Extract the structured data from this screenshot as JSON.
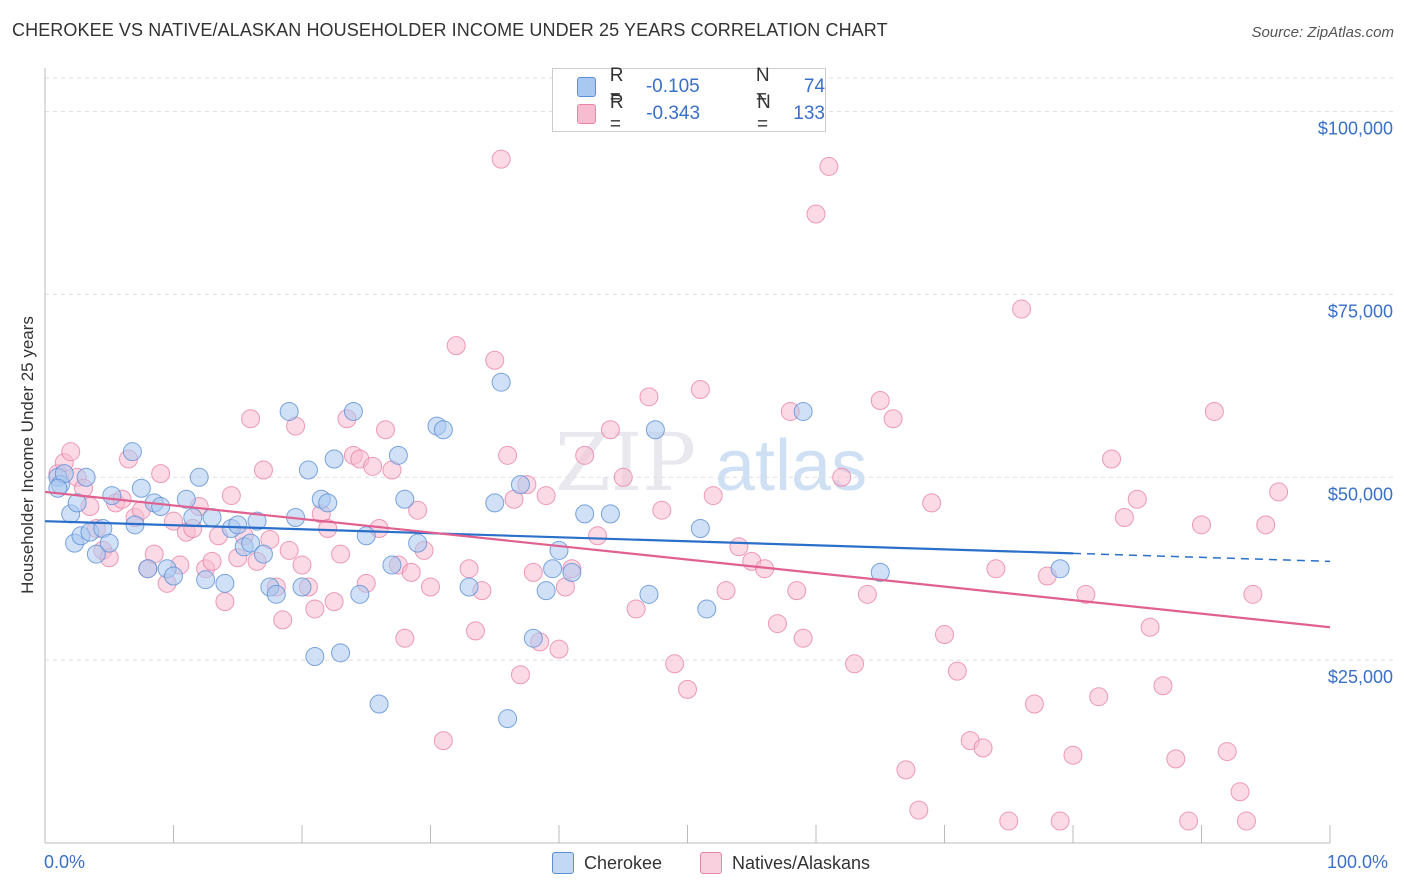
{
  "title": "CHEROKEE VS NATIVE/ALASKAN HOUSEHOLDER INCOME UNDER 25 YEARS CORRELATION CHART",
  "source": "Source: ZipAtlas.com",
  "watermark": {
    "zip": "ZIP",
    "atlas": "atlas"
  },
  "legend": {
    "rows": [
      {
        "r_label": "R =",
        "r_value": "-0.105",
        "n_label": "N =",
        "n_value": "74"
      },
      {
        "r_label": "R =",
        "r_value": "-0.343",
        "n_label": "N =",
        "n_value": "133"
      }
    ]
  },
  "colors": {
    "cherokee_fill": "#a9c8f0",
    "cherokee_stroke": "#5b8fd6",
    "cherokee_line": "#2a6fca",
    "natives_fill": "#f7bcd0",
    "natives_stroke": "#e883a7",
    "natives_line": "#e0608f",
    "tick_label": "#3a70c8",
    "grid": "#dddddd"
  },
  "chart_data": {
    "type": "scatter",
    "title": "CHEROKEE VS NATIVE/ALASKAN HOUSEHOLDER INCOME UNDER 25 YEARS CORRELATION CHART",
    "xlabel": "",
    "ylabel": "Householder Income Under 25 years",
    "xlim": [
      0,
      100
    ],
    "ylim": [
      0,
      105000
    ],
    "x_tick_labels": [
      "0.0%",
      "100.0%"
    ],
    "y_ticks": [
      25000,
      50000,
      75000,
      100000
    ],
    "y_tick_labels": [
      "$25,000",
      "$50,000",
      "$75,000",
      "$100,000"
    ],
    "grid": "horizontal dashed",
    "legend_position": "top-center",
    "series": [
      {
        "name": "Cherokee",
        "r": -0.105,
        "n": 74,
        "trend": {
          "x0": 0,
          "y0": 44000,
          "x1": 80,
          "y1": 39600,
          "dashed_to_x": 100,
          "dashed_to_y": 38500
        },
        "points": [
          [
            1,
            50000
          ],
          [
            1.2,
            49000
          ],
          [
            1.5,
            50500
          ],
          [
            2,
            45000
          ],
          [
            2.3,
            41000
          ],
          [
            2.8,
            42000
          ],
          [
            3.2,
            50000
          ],
          [
            3.5,
            42500
          ],
          [
            4,
            39500
          ],
          [
            4.5,
            43000
          ],
          [
            5,
            41000
          ],
          [
            5.2,
            47500
          ],
          [
            6.8,
            53500
          ],
          [
            7,
            43500
          ],
          [
            7.5,
            48500
          ],
          [
            8,
            37500
          ],
          [
            8.5,
            46500
          ],
          [
            9,
            46000
          ],
          [
            9.5,
            37500
          ],
          [
            10,
            36500
          ],
          [
            11,
            47000
          ],
          [
            11.5,
            44500
          ],
          [
            12,
            50000
          ],
          [
            12.5,
            36000
          ],
          [
            13,
            44500
          ],
          [
            14,
            35500
          ],
          [
            14.5,
            43000
          ],
          [
            15,
            43500
          ],
          [
            15.5,
            40500
          ],
          [
            16,
            41000
          ],
          [
            16.5,
            44000
          ],
          [
            17,
            39500
          ],
          [
            17.5,
            35000
          ],
          [
            18,
            34000
          ],
          [
            19,
            59000
          ],
          [
            19.5,
            44500
          ],
          [
            20,
            35000
          ],
          [
            20.5,
            51000
          ],
          [
            21,
            25500
          ],
          [
            21.5,
            47000
          ],
          [
            22,
            46500
          ],
          [
            22.5,
            52500
          ],
          [
            23,
            26000
          ],
          [
            24,
            59000
          ],
          [
            24.5,
            34000
          ],
          [
            25,
            42000
          ],
          [
            26,
            19000
          ],
          [
            27,
            38000
          ],
          [
            27.5,
            53000
          ],
          [
            28,
            47000
          ],
          [
            29,
            41000
          ],
          [
            30.5,
            57000
          ],
          [
            31,
            56500
          ],
          [
            33,
            35000
          ],
          [
            35,
            46500
          ],
          [
            35.5,
            63000
          ],
          [
            36,
            17000
          ],
          [
            37,
            49000
          ],
          [
            38,
            28000
          ],
          [
            39,
            34500
          ],
          [
            39.5,
            37500
          ],
          [
            40,
            40000
          ],
          [
            41,
            37000
          ],
          [
            42,
            45000
          ],
          [
            44,
            45000
          ],
          [
            47,
            34000
          ],
          [
            47.5,
            56500
          ],
          [
            51,
            43000
          ],
          [
            51.5,
            32000
          ],
          [
            59,
            59000
          ],
          [
            65,
            37000
          ],
          [
            79,
            37500
          ],
          [
            1,
            48500
          ],
          [
            2.5,
            46500
          ]
        ]
      },
      {
        "name": "Natives/Alaskans",
        "r": -0.343,
        "n": 133,
        "trend": {
          "x0": 0,
          "y0": 48000,
          "x1": 100,
          "y1": 29500
        },
        "points": [
          [
            1,
            50500
          ],
          [
            1.5,
            52000
          ],
          [
            2,
            53500
          ],
          [
            2.5,
            50000
          ],
          [
            3,
            48500
          ],
          [
            3.5,
            46000
          ],
          [
            4,
            43000
          ],
          [
            4.5,
            40000
          ],
          [
            5,
            39000
          ],
          [
            5.5,
            46500
          ],
          [
            6,
            47000
          ],
          [
            6.5,
            52500
          ],
          [
            7,
            44500
          ],
          [
            7.5,
            45500
          ],
          [
            8,
            37500
          ],
          [
            8.5,
            39500
          ],
          [
            9,
            50500
          ],
          [
            9.5,
            35500
          ],
          [
            10,
            44000
          ],
          [
            10.5,
            38000
          ],
          [
            11,
            42500
          ],
          [
            11.5,
            43000
          ],
          [
            12,
            46000
          ],
          [
            12.5,
            37500
          ],
          [
            13,
            38500
          ],
          [
            13.5,
            42000
          ],
          [
            14,
            33000
          ],
          [
            14.5,
            47500
          ],
          [
            15,
            39000
          ],
          [
            15.5,
            42000
          ],
          [
            16,
            58000
          ],
          [
            16.5,
            38500
          ],
          [
            17,
            51000
          ],
          [
            17.5,
            41500
          ],
          [
            18,
            35000
          ],
          [
            18.5,
            30500
          ],
          [
            19,
            40000
          ],
          [
            19.5,
            57000
          ],
          [
            20,
            38000
          ],
          [
            20.5,
            35000
          ],
          [
            21,
            32000
          ],
          [
            21.5,
            45000
          ],
          [
            22,
            43000
          ],
          [
            22.5,
            33000
          ],
          [
            23,
            39500
          ],
          [
            23.5,
            58000
          ],
          [
            24,
            53000
          ],
          [
            24.5,
            52500
          ],
          [
            25,
            35500
          ],
          [
            25.5,
            51500
          ],
          [
            26,
            43000
          ],
          [
            26.5,
            56500
          ],
          [
            27,
            51000
          ],
          [
            27.5,
            38000
          ],
          [
            28,
            28000
          ],
          [
            28.5,
            37000
          ],
          [
            29,
            45500
          ],
          [
            29.5,
            40000
          ],
          [
            30,
            35000
          ],
          [
            31,
            14000
          ],
          [
            32,
            68000
          ],
          [
            33,
            37500
          ],
          [
            33.5,
            29000
          ],
          [
            34,
            34500
          ],
          [
            35,
            66000
          ],
          [
            35.5,
            93500
          ],
          [
            36,
            53000
          ],
          [
            36.5,
            47000
          ],
          [
            37,
            23000
          ],
          [
            37.5,
            49000
          ],
          [
            38,
            37000
          ],
          [
            38.5,
            27500
          ],
          [
            39,
            47500
          ],
          [
            40,
            26500
          ],
          [
            40.5,
            35000
          ],
          [
            41,
            37500
          ],
          [
            42,
            53000
          ],
          [
            43,
            42000
          ],
          [
            44,
            56500
          ],
          [
            45,
            50000
          ],
          [
            46,
            32000
          ],
          [
            47,
            61000
          ],
          [
            48,
            45500
          ],
          [
            49,
            24500
          ],
          [
            50,
            21000
          ],
          [
            51,
            62000
          ],
          [
            52,
            47500
          ],
          [
            53,
            34500
          ],
          [
            54,
            40500
          ],
          [
            55,
            38500
          ],
          [
            56,
            37500
          ],
          [
            57,
            30000
          ],
          [
            58,
            59000
          ],
          [
            58.5,
            34500
          ],
          [
            59,
            28000
          ],
          [
            60,
            86000
          ],
          [
            61,
            92500
          ],
          [
            62,
            50000
          ],
          [
            63,
            24500
          ],
          [
            64,
            34000
          ],
          [
            65,
            60500
          ],
          [
            66,
            58000
          ],
          [
            67,
            10000
          ],
          [
            68,
            4500
          ],
          [
            69,
            46500
          ],
          [
            70,
            28500
          ],
          [
            71,
            23500
          ],
          [
            72,
            14000
          ],
          [
            73,
            13000
          ],
          [
            74,
            37500
          ],
          [
            75,
            3000
          ],
          [
            76,
            73000
          ],
          [
            77,
            19000
          ],
          [
            78,
            36500
          ],
          [
            79,
            3000
          ],
          [
            80,
            12000
          ],
          [
            81,
            34000
          ],
          [
            82,
            20000
          ],
          [
            83,
            52500
          ],
          [
            84,
            44500
          ],
          [
            85,
            47000
          ],
          [
            86,
            29500
          ],
          [
            87,
            21500
          ],
          [
            88,
            11500
          ],
          [
            89,
            3000
          ],
          [
            90,
            43500
          ],
          [
            91,
            59000
          ],
          [
            92,
            12500
          ],
          [
            93,
            7000
          ],
          [
            93.5,
            3000
          ],
          [
            94,
            34000
          ],
          [
            95,
            43500
          ],
          [
            96,
            48000
          ]
        ]
      }
    ]
  },
  "bottom_legend": [
    "Cherokee",
    "Natives/Alaskans"
  ]
}
